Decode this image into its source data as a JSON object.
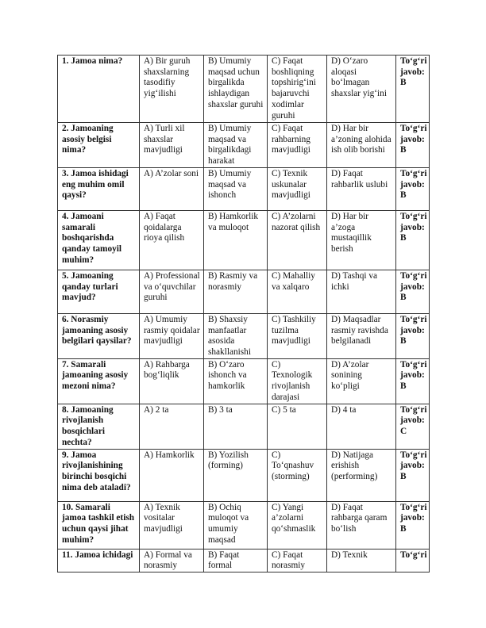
{
  "rows": [
    {
      "q": "1. Jamoa nima?",
      "a": "A) Bir guruh shaxslarning tasodifiy yig‘ilishi",
      "b": "B) Umumiy maqsad uchun birgalikda ishlaydigan shaxslar guruhi",
      "c": "C) Faqat boshliqning topshirig‘ini bajaruvchi xodimlar guruhi",
      "d": "D) O‘zaro aloqasi bo‘lmagan shaxslar yig‘ini",
      "ans": "To‘g‘ri javob: B"
    },
    {
      "q": "2. Jamoaning asosiy belgisi nima?",
      "a": "A) Turli xil shaxslar mavjudligi",
      "b": "B) Umumiy maqsad va birgalikdagi harakat",
      "c": "C) Faqat rahbarning mavjudligi",
      "d": "D) Har bir a’zoning alohida ish olib borishi",
      "ans": "To‘g‘ri javob: B"
    },
    {
      "q": "3. Jamoa ishidagi eng muhim omil qaysi?",
      "a": "A) A’zolar soni",
      "b": "B) Umumiy maqsad va ishonch",
      "c": "C) Texnik uskunalar mavjudligi",
      "d": "D) Faqat rahbarlik uslubi",
      "ans": "To‘g‘ri javob: B"
    },
    {
      "q": "4. Jamoani samarali boshqarishda qanday tamoyil muhim?",
      "a": "A) Faqat qoidalarga rioya qilish",
      "b": "B) Hamkorlik va muloqot",
      "c": "C) A’zolarni nazorat qilish",
      "d": "D) Har bir a’zoga mustaqillik berish",
      "ans": "To‘g‘ri javob: B"
    },
    {
      "q": "5. Jamoaning qanday turlari mavjud?",
      "a": "A) Professional va o‘quvchilar guruhi",
      "b": "B) Rasmiy va norasmiy",
      "c": "C) Mahalliy va xalqaro",
      "d": "D) Tashqi va ichki",
      "ans": "To‘g‘ri javob: B"
    },
    {
      "q": "6. Norasmiy jamoaning asosiy belgilari qaysilar?",
      "a": "A) Umumiy rasmiy qoidalar mavjudligi",
      "b": "B) Shaxsiy manfaatlar asosida shakllanishi",
      "c": "C) Tashkiliy tuzilma mavjudligi",
      "d": "D) Maqsadlar rasmiy ravishda belgilanadi",
      "ans": "To‘g‘ri javob: B"
    },
    {
      "q": "7. Samarali jamoaning asosiy mezoni nima?",
      "a": "A) Rahbarga bog‘liqlik",
      "b": "B) O‘zaro ishonch va hamkorlik",
      "c": "C) Texnologik rivojlanish darajasi",
      "d": "D) A’zolar sonining ko‘pligi",
      "ans": "To‘g‘ri javob: B"
    },
    {
      "q": "8. Jamoaning rivojlanish bosqichlari nechta?",
      "a": "A) 2 ta",
      "b": "B) 3 ta",
      "c": "C) 5 ta",
      "d": "D) 4 ta",
      "ans": "To‘g‘ri javob: C"
    },
    {
      "q": "9. Jamoa rivojlanishining birinchi bosqichi nima deb ataladi?",
      "a": "A) Hamkorlik",
      "b": "B) Yozilish (forming)",
      "c": "C) To‘qnashuv (storming)",
      "d": "D) Natijaga erishish (performing)",
      "ans": "To‘g‘ri javob: B"
    },
    {
      "q": "10. Samarali jamoa tashkil etish uchun qaysi jihat muhim?",
      "a": "A) Texnik vositalar mavjudligi",
      "b": "B) Ochiq muloqot va umumiy maqsad",
      "c": "C) Yangi a’zolarni qo‘shmaslik",
      "d": "D) Faqat rahbarga qaram bo‘lish",
      "ans": "To‘g‘ri javob: B"
    },
    {
      "q": "11. Jamoa ichidagi",
      "a": "A) Formal va norasmiy",
      "b": "B) Faqat formal",
      "c": "C) Faqat norasmiy",
      "d": "D) Texnik",
      "ans": "To‘g‘ri"
    }
  ]
}
